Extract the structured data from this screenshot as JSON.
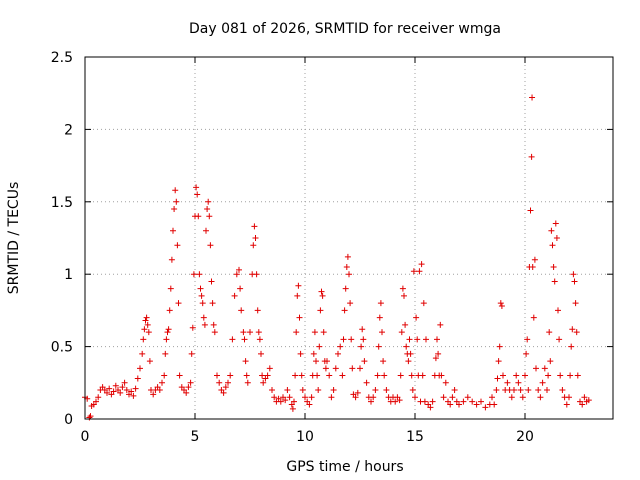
{
  "chart_data": {
    "type": "scatter",
    "title": "Day 081 of 2026, SRMTID for receiver wmga",
    "xlabel": "GPS time / hours",
    "ylabel": "SRMTID / TECUs",
    "xlim": [
      0,
      24
    ],
    "ylim": [
      0,
      2.5
    ],
    "xticks": [
      0,
      5,
      10,
      15,
      20
    ],
    "yticks": [
      0,
      0.5,
      1,
      1.5,
      2,
      2.5
    ],
    "xtick_labels": [
      "0",
      "5",
      "10",
      "15",
      "20"
    ],
    "ytick_labels": [
      "0",
      "0.5",
      "1",
      "1.5",
      "2",
      "2.5"
    ],
    "grid": true,
    "marker": "+",
    "color": "#e00000",
    "series": [
      {
        "name": "SRMTID",
        "points": [
          [
            0.0,
            0.15
          ],
          [
            0.1,
            0.14
          ],
          [
            0.2,
            0.01
          ],
          [
            0.25,
            0.02
          ],
          [
            0.3,
            0.09
          ],
          [
            0.4,
            0.1
          ],
          [
            0.5,
            0.12
          ],
          [
            0.6,
            0.15
          ],
          [
            0.7,
            0.2
          ],
          [
            0.8,
            0.22
          ],
          [
            0.9,
            0.2
          ],
          [
            1.0,
            0.18
          ],
          [
            1.1,
            0.21
          ],
          [
            1.2,
            0.17
          ],
          [
            1.3,
            0.19
          ],
          [
            1.4,
            0.23
          ],
          [
            1.5,
            0.2
          ],
          [
            1.6,
            0.18
          ],
          [
            1.7,
            0.22
          ],
          [
            1.8,
            0.25
          ],
          [
            1.9,
            0.2
          ],
          [
            2.0,
            0.17
          ],
          [
            2.1,
            0.19
          ],
          [
            2.2,
            0.16
          ],
          [
            2.3,
            0.21
          ],
          [
            2.4,
            0.28
          ],
          [
            2.5,
            0.35
          ],
          [
            2.6,
            0.45
          ],
          [
            2.65,
            0.55
          ],
          [
            2.7,
            0.62
          ],
          [
            2.75,
            0.68
          ],
          [
            2.8,
            0.7
          ],
          [
            2.85,
            0.65
          ],
          [
            2.9,
            0.6
          ],
          [
            2.95,
            0.4
          ],
          [
            3.0,
            0.2
          ],
          [
            3.1,
            0.17
          ],
          [
            3.2,
            0.2
          ],
          [
            3.3,
            0.22
          ],
          [
            3.4,
            0.2
          ],
          [
            3.5,
            0.25
          ],
          [
            3.6,
            0.3
          ],
          [
            3.65,
            0.45
          ],
          [
            3.7,
            0.55
          ],
          [
            3.75,
            0.6
          ],
          [
            3.8,
            0.62
          ],
          [
            3.85,
            0.75
          ],
          [
            3.9,
            0.9
          ],
          [
            3.95,
            1.1
          ],
          [
            4.0,
            1.3
          ],
          [
            4.05,
            1.45
          ],
          [
            4.1,
            1.58
          ],
          [
            4.15,
            1.5
          ],
          [
            4.2,
            1.2
          ],
          [
            4.25,
            0.8
          ],
          [
            4.3,
            0.3
          ],
          [
            4.4,
            0.22
          ],
          [
            4.5,
            0.2
          ],
          [
            4.6,
            0.18
          ],
          [
            4.7,
            0.22
          ],
          [
            4.8,
            0.25
          ],
          [
            4.85,
            0.45
          ],
          [
            4.9,
            0.63
          ],
          [
            4.95,
            1.0
          ],
          [
            5.0,
            1.4
          ],
          [
            5.05,
            1.6
          ],
          [
            5.1,
            1.55
          ],
          [
            5.15,
            1.4
          ],
          [
            5.2,
            1.0
          ],
          [
            5.25,
            0.9
          ],
          [
            5.3,
            0.85
          ],
          [
            5.35,
            0.8
          ],
          [
            5.4,
            0.7
          ],
          [
            5.45,
            0.65
          ],
          [
            5.5,
            1.3
          ],
          [
            5.55,
            1.45
          ],
          [
            5.6,
            1.5
          ],
          [
            5.65,
            1.4
          ],
          [
            5.7,
            1.2
          ],
          [
            5.75,
            0.95
          ],
          [
            5.8,
            0.8
          ],
          [
            5.85,
            0.65
          ],
          [
            5.9,
            0.6
          ],
          [
            6.0,
            0.3
          ],
          [
            6.1,
            0.25
          ],
          [
            6.2,
            0.2
          ],
          [
            6.3,
            0.18
          ],
          [
            6.4,
            0.22
          ],
          [
            6.5,
            0.25
          ],
          [
            6.6,
            0.3
          ],
          [
            6.7,
            0.55
          ],
          [
            6.8,
            0.85
          ],
          [
            6.9,
            1.0
          ],
          [
            7.0,
            1.03
          ],
          [
            7.05,
            0.9
          ],
          [
            7.1,
            0.75
          ],
          [
            7.2,
            0.6
          ],
          [
            7.25,
            0.55
          ],
          [
            7.3,
            0.4
          ],
          [
            7.35,
            0.3
          ],
          [
            7.4,
            0.25
          ],
          [
            7.5,
            0.6
          ],
          [
            7.6,
            1.0
          ],
          [
            7.65,
            1.2
          ],
          [
            7.7,
            1.33
          ],
          [
            7.75,
            1.25
          ],
          [
            7.8,
            1.0
          ],
          [
            7.85,
            0.75
          ],
          [
            7.9,
            0.6
          ],
          [
            7.95,
            0.55
          ],
          [
            8.0,
            0.45
          ],
          [
            8.05,
            0.3
          ],
          [
            8.1,
            0.25
          ],
          [
            8.2,
            0.28
          ],
          [
            8.3,
            0.3
          ],
          [
            8.4,
            0.35
          ],
          [
            8.5,
            0.2
          ],
          [
            8.6,
            0.15
          ],
          [
            8.7,
            0.12
          ],
          [
            8.8,
            0.14
          ],
          [
            8.9,
            0.12
          ],
          [
            9.0,
            0.15
          ],
          [
            9.1,
            0.13
          ],
          [
            9.2,
            0.2
          ],
          [
            9.3,
            0.15
          ],
          [
            9.4,
            0.1
          ],
          [
            9.45,
            0.07
          ],
          [
            9.5,
            0.12
          ],
          [
            9.55,
            0.3
          ],
          [
            9.6,
            0.6
          ],
          [
            9.65,
            0.85
          ],
          [
            9.7,
            0.92
          ],
          [
            9.75,
            0.7
          ],
          [
            9.8,
            0.45
          ],
          [
            9.85,
            0.3
          ],
          [
            9.9,
            0.2
          ],
          [
            10.0,
            0.15
          ],
          [
            10.1,
            0.12
          ],
          [
            10.2,
            0.1
          ],
          [
            10.3,
            0.15
          ],
          [
            10.35,
            0.3
          ],
          [
            10.4,
            0.45
          ],
          [
            10.45,
            0.6
          ],
          [
            10.5,
            0.4
          ],
          [
            10.55,
            0.3
          ],
          [
            10.6,
            0.2
          ],
          [
            10.65,
            0.5
          ],
          [
            10.7,
            0.75
          ],
          [
            10.75,
            0.88
          ],
          [
            10.8,
            0.85
          ],
          [
            10.85,
            0.6
          ],
          [
            10.9,
            0.4
          ],
          [
            10.95,
            0.35
          ],
          [
            11.0,
            0.4
          ],
          [
            11.1,
            0.3
          ],
          [
            11.2,
            0.15
          ],
          [
            11.3,
            0.2
          ],
          [
            11.4,
            0.35
          ],
          [
            11.5,
            0.45
          ],
          [
            11.6,
            0.5
          ],
          [
            11.7,
            0.3
          ],
          [
            11.75,
            0.55
          ],
          [
            11.8,
            0.75
          ],
          [
            11.85,
            0.9
          ],
          [
            11.9,
            1.05
          ],
          [
            11.95,
            1.12
          ],
          [
            12.0,
            1.0
          ],
          [
            12.05,
            0.8
          ],
          [
            12.1,
            0.55
          ],
          [
            12.15,
            0.35
          ],
          [
            12.2,
            0.17
          ],
          [
            12.3,
            0.15
          ],
          [
            12.4,
            0.18
          ],
          [
            12.5,
            0.35
          ],
          [
            12.55,
            0.5
          ],
          [
            12.6,
            0.62
          ],
          [
            12.65,
            0.55
          ],
          [
            12.7,
            0.4
          ],
          [
            12.8,
            0.25
          ],
          [
            12.9,
            0.15
          ],
          [
            13.0,
            0.12
          ],
          [
            13.1,
            0.15
          ],
          [
            13.2,
            0.2
          ],
          [
            13.3,
            0.3
          ],
          [
            13.35,
            0.5
          ],
          [
            13.4,
            0.7
          ],
          [
            13.45,
            0.8
          ],
          [
            13.5,
            0.6
          ],
          [
            13.55,
            0.4
          ],
          [
            13.6,
            0.3
          ],
          [
            13.7,
            0.2
          ],
          [
            13.8,
            0.15
          ],
          [
            13.9,
            0.12
          ],
          [
            14.0,
            0.15
          ],
          [
            14.1,
            0.12
          ],
          [
            14.2,
            0.15
          ],
          [
            14.3,
            0.13
          ],
          [
            14.35,
            0.3
          ],
          [
            14.4,
            0.6
          ],
          [
            14.45,
            0.9
          ],
          [
            14.5,
            0.85
          ],
          [
            14.55,
            0.65
          ],
          [
            14.6,
            0.5
          ],
          [
            14.65,
            0.45
          ],
          [
            14.7,
            0.4
          ],
          [
            14.75,
            0.55
          ],
          [
            14.8,
            0.45
          ],
          [
            14.85,
            0.3
          ],
          [
            14.9,
            0.2
          ],
          [
            14.95,
            1.02
          ],
          [
            15.0,
            0.15
          ],
          [
            15.05,
            0.7
          ],
          [
            15.1,
            0.55
          ],
          [
            15.15,
            0.3
          ],
          [
            15.2,
            1.02
          ],
          [
            15.25,
            0.12
          ],
          [
            15.3,
            1.07
          ],
          [
            15.35,
            0.3
          ],
          [
            15.4,
            0.8
          ],
          [
            15.45,
            0.12
          ],
          [
            15.5,
            0.55
          ],
          [
            15.6,
            0.1
          ],
          [
            15.7,
            0.08
          ],
          [
            15.8,
            0.12
          ],
          [
            15.9,
            0.3
          ],
          [
            15.95,
            0.42
          ],
          [
            16.0,
            0.55
          ],
          [
            16.05,
            0.45
          ],
          [
            16.1,
            0.3
          ],
          [
            16.15,
            0.65
          ],
          [
            16.2,
            0.3
          ],
          [
            16.3,
            0.15
          ],
          [
            16.4,
            0.25
          ],
          [
            16.5,
            0.12
          ],
          [
            16.6,
            0.1
          ],
          [
            16.7,
            0.15
          ],
          [
            16.8,
            0.2
          ],
          [
            16.9,
            0.12
          ],
          [
            17.0,
            0.1
          ],
          [
            17.2,
            0.12
          ],
          [
            17.4,
            0.15
          ],
          [
            17.6,
            0.12
          ],
          [
            17.8,
            0.1
          ],
          [
            18.0,
            0.12
          ],
          [
            18.2,
            0.08
          ],
          [
            18.4,
            0.1
          ],
          [
            18.5,
            0.15
          ],
          [
            18.6,
            0.1
          ],
          [
            18.7,
            0.2
          ],
          [
            18.75,
            0.28
          ],
          [
            18.8,
            0.4
          ],
          [
            18.85,
            0.5
          ],
          [
            18.9,
            0.8
          ],
          [
            18.95,
            0.78
          ],
          [
            19.0,
            0.3
          ],
          [
            19.1,
            0.2
          ],
          [
            19.2,
            0.25
          ],
          [
            19.3,
            0.2
          ],
          [
            19.4,
            0.15
          ],
          [
            19.5,
            0.2
          ],
          [
            19.6,
            0.3
          ],
          [
            19.7,
            0.25
          ],
          [
            19.8,
            0.2
          ],
          [
            19.9,
            0.15
          ],
          [
            20.0,
            0.3
          ],
          [
            20.05,
            0.45
          ],
          [
            20.1,
            0.55
          ],
          [
            20.15,
            0.2
          ],
          [
            20.2,
            1.05
          ],
          [
            20.25,
            1.44
          ],
          [
            20.3,
            1.81
          ],
          [
            20.32,
            2.22
          ],
          [
            20.35,
            1.05
          ],
          [
            20.4,
            0.7
          ],
          [
            20.45,
            1.1
          ],
          [
            20.5,
            0.35
          ],
          [
            20.6,
            0.2
          ],
          [
            20.7,
            0.15
          ],
          [
            20.8,
            0.25
          ],
          [
            20.9,
            0.35
          ],
          [
            21.0,
            0.2
          ],
          [
            21.05,
            0.3
          ],
          [
            21.1,
            0.6
          ],
          [
            21.15,
            0.4
          ],
          [
            21.2,
            1.3
          ],
          [
            21.25,
            1.2
          ],
          [
            21.3,
            1.05
          ],
          [
            21.35,
            0.95
          ],
          [
            21.4,
            1.35
          ],
          [
            21.45,
            1.25
          ],
          [
            21.5,
            0.75
          ],
          [
            21.55,
            0.55
          ],
          [
            21.6,
            0.3
          ],
          [
            21.7,
            0.2
          ],
          [
            21.8,
            0.15
          ],
          [
            21.9,
            0.1
          ],
          [
            22.0,
            0.15
          ],
          [
            22.05,
            0.3
          ],
          [
            22.1,
            0.5
          ],
          [
            22.15,
            0.62
          ],
          [
            22.2,
            1.0
          ],
          [
            22.25,
            0.95
          ],
          [
            22.3,
            0.8
          ],
          [
            22.35,
            0.6
          ],
          [
            22.4,
            0.3
          ],
          [
            22.5,
            0.12
          ],
          [
            22.6,
            0.1
          ],
          [
            22.7,
            0.15
          ],
          [
            22.8,
            0.12
          ],
          [
            22.9,
            0.13
          ]
        ]
      }
    ]
  }
}
